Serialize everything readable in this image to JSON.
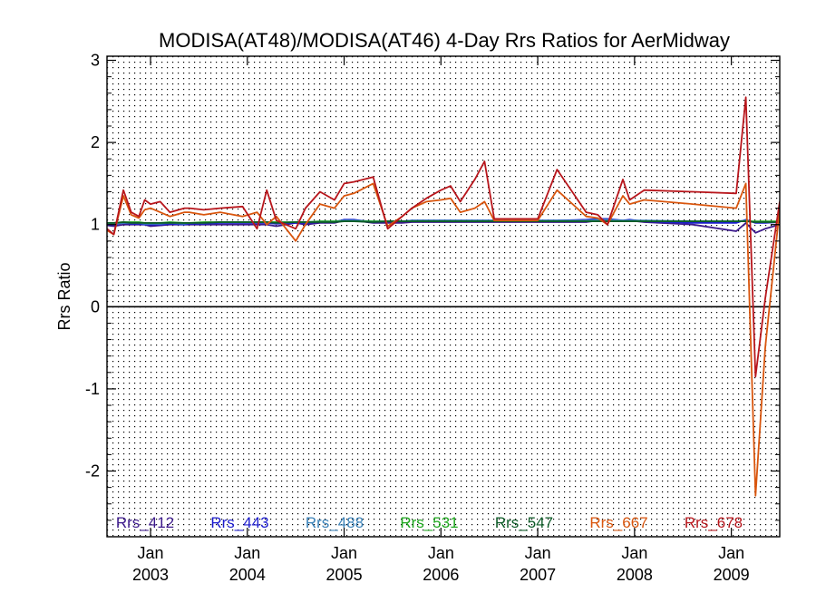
{
  "chart_data": {
    "type": "line",
    "title": "MODISA(AT48)/MODISA(AT46) 4-Day Rrs Ratios for AerMidway",
    "ylabel": "Rrs Ratio",
    "xlabel": "",
    "ylim": [
      -2.8,
      3.05
    ],
    "xlim": [
      2002.55,
      2009.5
    ],
    "yticks": [
      -2,
      -1,
      0,
      1,
      2,
      3
    ],
    "xticks": [
      {
        "value": 2003.0,
        "month": "Jan",
        "year": "2003"
      },
      {
        "value": 2004.0,
        "month": "Jan",
        "year": "2004"
      },
      {
        "value": 2005.0,
        "month": "Jan",
        "year": "2005"
      },
      {
        "value": 2006.0,
        "month": "Jan",
        "year": "2006"
      },
      {
        "value": 2007.0,
        "month": "Jan",
        "year": "2007"
      },
      {
        "value": 2008.0,
        "month": "Jan",
        "year": "2008"
      },
      {
        "value": 2009.0,
        "month": "Jan",
        "year": "2009"
      }
    ],
    "reference_line": 0,
    "grid": true,
    "legend_placement": "bottom",
    "x": [
      2002.55,
      2002.62,
      2002.72,
      2002.8,
      2002.88,
      2002.94,
      2003.0,
      2003.1,
      2003.2,
      2003.35,
      2003.4,
      2003.55,
      2003.72,
      2003.95,
      2004.1,
      2004.2,
      2004.3,
      2004.5,
      2004.6,
      2004.75,
      2004.9,
      2005.0,
      2005.1,
      2005.3,
      2005.45,
      2005.6,
      2005.7,
      2005.85,
      2006.0,
      2006.1,
      2006.2,
      2006.35,
      2006.45,
      2006.55,
      2007.0,
      2007.2,
      2007.5,
      2007.62,
      2007.72,
      2007.88,
      2007.95,
      2008.1,
      2008.6,
      2009.05,
      2009.15,
      2009.25,
      2009.35,
      2009.5
    ],
    "series": [
      {
        "name": "Rrs_412",
        "color": "#3d1a8c",
        "values": [
          0.99,
          0.98,
          1.0,
          1.0,
          1.0,
          1.0,
          0.98,
          0.99,
          1.0,
          1.0,
          1.0,
          1.0,
          1.0,
          1.0,
          1.0,
          1.0,
          0.98,
          1.02,
          1.0,
          1.02,
          1.02,
          1.05,
          1.05,
          1.02,
          1.02,
          1.02,
          1.03,
          1.03,
          1.03,
          1.03,
          1.03,
          1.03,
          1.03,
          1.03,
          1.03,
          1.03,
          1.03,
          1.05,
          1.06,
          1.04,
          1.05,
          1.03,
          1.0,
          0.92,
          1.02,
          0.9,
          0.95,
          1.0
        ]
      },
      {
        "name": "Rrs_443",
        "color": "#1c1ccf",
        "values": [
          1.0,
          1.0,
          1.02,
          1.01,
          1.01,
          1.0,
          1.0,
          1.0,
          1.01,
          1.0,
          1.01,
          1.01,
          1.02,
          1.02,
          1.02,
          1.02,
          1.01,
          1.02,
          1.02,
          1.03,
          1.03,
          1.06,
          1.06,
          1.03,
          1.04,
          1.04,
          1.05,
          1.05,
          1.05,
          1.05,
          1.05,
          1.05,
          1.05,
          1.05,
          1.05,
          1.05,
          1.06,
          1.07,
          1.07,
          1.05,
          1.06,
          1.04,
          1.02,
          1.02,
          1.06,
          1.02,
          1.02,
          1.03
        ]
      },
      {
        "name": "Rrs_488",
        "color": "#3b82b8",
        "values": [
          1.01,
          1.01,
          1.02,
          1.02,
          1.02,
          1.01,
          1.01,
          1.01,
          1.02,
          1.01,
          1.02,
          1.02,
          1.03,
          1.03,
          1.03,
          1.03,
          1.02,
          1.03,
          1.03,
          1.04,
          1.04,
          1.05,
          1.05,
          1.04,
          1.04,
          1.04,
          1.05,
          1.05,
          1.05,
          1.05,
          1.05,
          1.05,
          1.05,
          1.05,
          1.05,
          1.05,
          1.05,
          1.06,
          1.06,
          1.05,
          1.05,
          1.05,
          1.04,
          1.04,
          1.05,
          1.03,
          1.03,
          1.03
        ]
      },
      {
        "name": "Rrs_531",
        "color": "#1fa81f",
        "values": [
          1.02,
          1.02,
          1.03,
          1.03,
          1.03,
          1.02,
          1.02,
          1.02,
          1.03,
          1.02,
          1.02,
          1.03,
          1.03,
          1.03,
          1.03,
          1.03,
          1.03,
          1.03,
          1.03,
          1.04,
          1.04,
          1.04,
          1.04,
          1.04,
          1.04,
          1.04,
          1.04,
          1.04,
          1.04,
          1.04,
          1.04,
          1.04,
          1.04,
          1.04,
          1.04,
          1.04,
          1.04,
          1.04,
          1.04,
          1.04,
          1.04,
          1.04,
          1.04,
          1.04,
          1.04,
          1.04,
          1.04,
          1.04
        ]
      },
      {
        "name": "Rrs_547",
        "color": "#0c5a26",
        "values": [
          1.02,
          1.02,
          1.03,
          1.02,
          1.02,
          1.02,
          1.02,
          1.02,
          1.02,
          1.02,
          1.02,
          1.02,
          1.03,
          1.03,
          1.03,
          1.03,
          1.02,
          1.03,
          1.03,
          1.03,
          1.03,
          1.04,
          1.04,
          1.03,
          1.04,
          1.04,
          1.04,
          1.04,
          1.04,
          1.04,
          1.04,
          1.04,
          1.04,
          1.04,
          1.04,
          1.04,
          1.04,
          1.04,
          1.04,
          1.04,
          1.04,
          1.04,
          1.04,
          1.04,
          1.04,
          1.03,
          1.03,
          1.03
        ]
      },
      {
        "name": "Rrs_667",
        "color": "#d9560e",
        "values": [
          0.93,
          0.88,
          1.35,
          1.12,
          1.08,
          1.18,
          1.2,
          1.15,
          1.1,
          1.15,
          1.15,
          1.12,
          1.15,
          1.1,
          1.15,
          1.0,
          1.1,
          0.8,
          1.0,
          1.25,
          1.2,
          1.35,
          1.38,
          1.5,
          0.98,
          1.1,
          1.2,
          1.28,
          1.3,
          1.32,
          1.15,
          1.2,
          1.28,
          1.05,
          1.05,
          1.42,
          1.1,
          1.08,
          1.0,
          1.35,
          1.25,
          1.3,
          1.25,
          1.2,
          1.5,
          -2.3,
          -0.5,
          1.2
        ]
      },
      {
        "name": "Rrs_678",
        "color": "#b8161c",
        "values": [
          0.95,
          0.88,
          1.42,
          1.15,
          1.1,
          1.3,
          1.25,
          1.28,
          1.15,
          1.2,
          1.2,
          1.18,
          1.2,
          1.22,
          0.95,
          1.42,
          1.05,
          0.95,
          1.2,
          1.4,
          1.3,
          1.5,
          1.52,
          1.58,
          0.95,
          1.1,
          1.2,
          1.32,
          1.42,
          1.47,
          1.28,
          1.55,
          1.77,
          1.07,
          1.07,
          1.67,
          1.15,
          1.12,
          1.0,
          1.55,
          1.3,
          1.42,
          1.4,
          1.38,
          2.55,
          -0.85,
          0.1,
          1.28
        ]
      }
    ]
  }
}
